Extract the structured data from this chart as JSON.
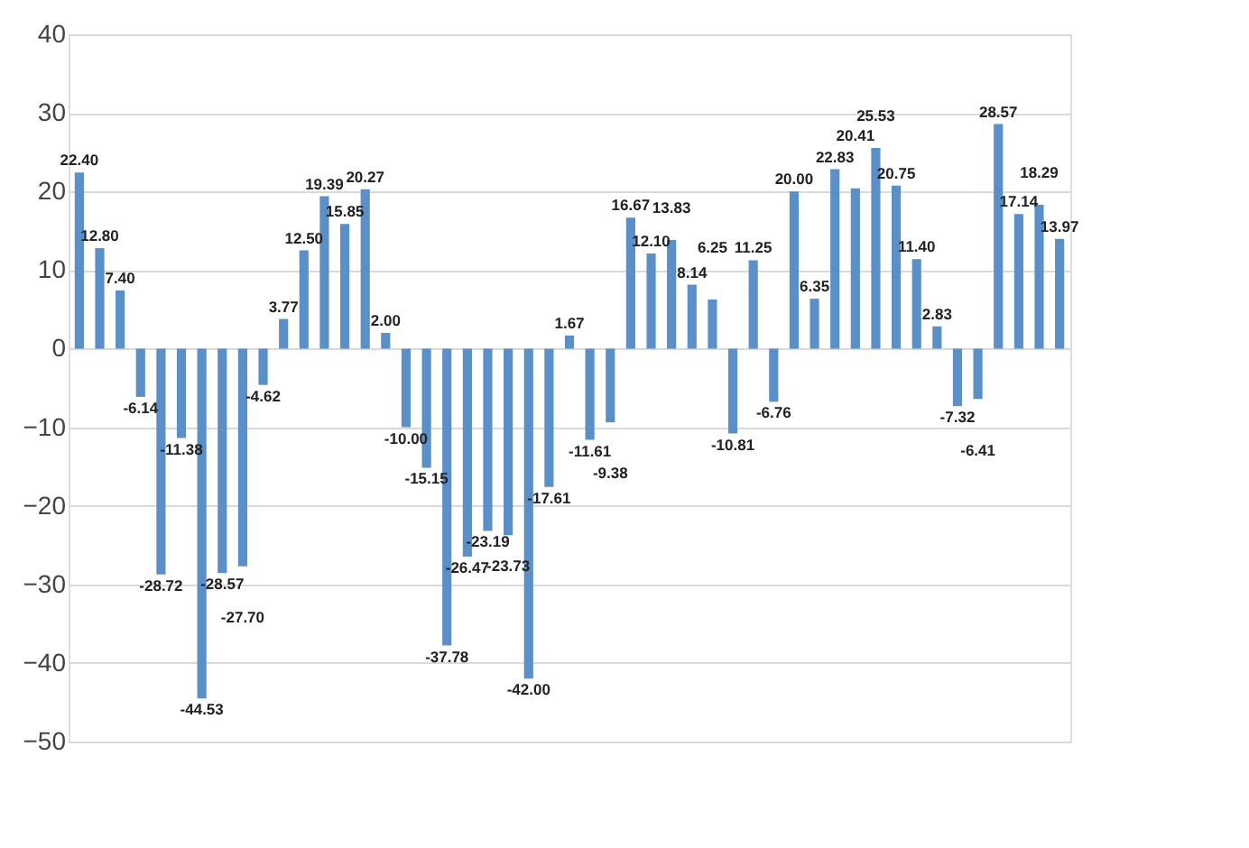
{
  "chart_data": {
    "type": "bar",
    "categories": [
      null,
      null,
      null,
      null,
      null,
      null,
      null,
      null,
      null,
      null,
      null,
      null,
      null,
      null,
      null,
      null,
      null,
      null,
      null,
      null,
      null,
      null,
      null,
      null,
      null,
      null,
      null,
      null,
      null,
      null,
      null,
      null,
      null,
      null,
      null,
      null,
      null,
      null,
      null,
      null,
      null,
      null,
      null,
      null,
      null,
      null,
      null,
      null,
      null
    ],
    "values": [
      22.4,
      12.8,
      7.4,
      -6.14,
      -28.72,
      -11.38,
      -44.53,
      -28.57,
      -27.7,
      -4.62,
      3.77,
      12.5,
      19.39,
      15.85,
      20.27,
      2.0,
      -10.0,
      -15.15,
      -37.78,
      -26.47,
      -23.19,
      -23.73,
      -42.0,
      -17.61,
      1.67,
      -11.61,
      -9.38,
      16.67,
      12.1,
      13.83,
      8.14,
      6.25,
      -10.81,
      11.25,
      -6.76,
      20.0,
      6.35,
      22.83,
      20.41,
      25.53,
      20.75,
      11.4,
      2.83,
      -7.32,
      -6.41,
      28.57,
      17.14,
      18.29,
      13.97
    ],
    "value_labels": [
      "22.40",
      "12.80",
      "7.40",
      "-6.14",
      "-28.72",
      "-11.38",
      "-44.53",
      "-28.57",
      "-27.70",
      "-4.62",
      "3.77",
      "12.50",
      "19.39",
      "15.85",
      "20.27",
      "2.00",
      "-10.00",
      "-15.15",
      "-37.78",
      "-26.47",
      "-23.19",
      "-23.73",
      "-42.00",
      "-17.61",
      "1.67",
      "-11.61",
      "-9.38",
      "16.67",
      "12.10",
      "13.83",
      "8.14",
      "6.25",
      "-10.81",
      "11.25",
      "-6.76",
      "20.00",
      "6.35",
      "22.83",
      "20.41",
      "25.53",
      "20.75",
      "11.40",
      "2.83",
      "-7.32",
      "-6.41",
      "28.57",
      "17.14",
      "18.29",
      "13.97"
    ],
    "color": "#5b8fc7",
    "ylim": [
      -50,
      40
    ],
    "yticks": [
      -50,
      -40,
      -30,
      -20,
      -10,
      0,
      10,
      20,
      30,
      40
    ],
    "grid": "y",
    "tick_labels": "y"
  }
}
